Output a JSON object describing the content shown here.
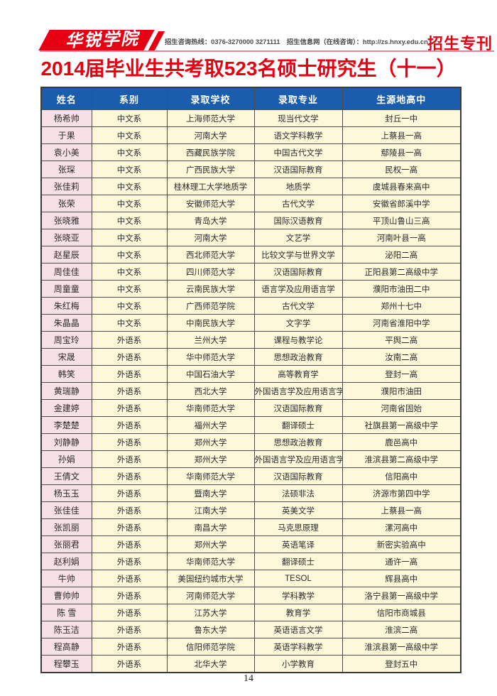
{
  "header": {
    "logo_text": "华锐学院",
    "contact_info": "招生咨询热线：0376-3270000 3271111　招生信息网（在线咨询）：http://zs.hnxy.edu.cn",
    "badge": "招生专刊"
  },
  "title": "2014届毕业生共考取523名硕士研究生（十一）",
  "colors": {
    "accent_red": "#e60012",
    "header_blue": "#1a5dad",
    "name_cell_pink": "#f8e1e6",
    "cell_cream": "#fdf8da",
    "rule_pink": "#e28391"
  },
  "table": {
    "columns": [
      "姓名",
      "系别",
      "录取学校",
      "录取专业",
      "生源地高中"
    ],
    "rows": [
      [
        "杨希帅",
        "中文系",
        "上海师范大学",
        "现当代文学",
        "封丘一中"
      ],
      [
        "于果",
        "中文系",
        "河南大学",
        "语文学科教学",
        "上蔡县一高"
      ],
      [
        "袁小美",
        "中文系",
        "西藏民族学院",
        "中国古代文学",
        "鄢陵县一高"
      ],
      [
        "张琛",
        "中文系",
        "广西民族大学",
        "汉语国际教育",
        "民权一高"
      ],
      [
        "张佳莉",
        "中文系",
        "桂林理工大学地质学",
        "地质学",
        "虞城县春来高中"
      ],
      [
        "张荣",
        "中文系",
        "安徽师范大学",
        "古代文学",
        "安徽省郎溪中学"
      ],
      [
        "张晓雅",
        "中文系",
        "青岛大学",
        "国际汉语教育",
        "平顶山鲁山三高"
      ],
      [
        "张晓亚",
        "中文系",
        "河南大学",
        "文艺学",
        "河南叶县一高"
      ],
      [
        "赵星辰",
        "中文系",
        "西北师范大学",
        "比较文学与世界文学",
        "泌阳二高"
      ],
      [
        "周佳佳",
        "中文系",
        "四川师范大学",
        "汉语国际教育",
        "正阳县第二高级中学"
      ],
      [
        "周童童",
        "中文系",
        "云南民族大学",
        "语言学及应用语言学",
        "濮阳市油田二中"
      ],
      [
        "朱红梅",
        "中文系",
        "广西师范学院",
        "古代文学",
        "郑州十七中"
      ],
      [
        "朱晶晶",
        "中文系",
        "中南民族大学",
        "文字学",
        "河南省淮阳中学"
      ],
      [
        "周宝玲",
        "外语系",
        "兰州大学",
        "课程与教学论",
        "平舆二高"
      ],
      [
        "宋晟",
        "外语系",
        "华中师范大学",
        "思想政治教育",
        "汝南二高"
      ],
      [
        "韩笑",
        "外语系",
        "中国石油大学",
        "高等教育学",
        "登封一高"
      ],
      [
        "黄瑞静",
        "外语系",
        "西北大学",
        "外国语言学及应用语言学",
        "濮阳市油田"
      ],
      [
        "金建婷",
        "外语系",
        "华南师范大学",
        "汉语国际教育",
        "河南省固始"
      ],
      [
        "李楚楚",
        "外语系",
        "福州大学",
        "翻译硕士",
        "社旗县第一高级中学"
      ],
      [
        "刘静静",
        "外语系",
        "郑州大学",
        "思想政治教育",
        "鹿邑高中"
      ],
      [
        "孙娟",
        "外语系",
        "郑州大学",
        "外国语言学及应用语言学",
        "淮滨县第二高级中学"
      ],
      [
        "王倩文",
        "外语系",
        "华南师范大学",
        "汉语国际教育",
        "信阳高中"
      ],
      [
        "杨玉玉",
        "外语系",
        "暨南大学",
        "法硕非法",
        "济源市第四中学"
      ],
      [
        "张佳佳",
        "外语系",
        "江南大学",
        "英美文学",
        "上蔡县一高"
      ],
      [
        "张凯丽",
        "外语系",
        "南昌大学",
        "马克思原理",
        "漯河高中"
      ],
      [
        "张丽君",
        "外语系",
        "郑州大学",
        "英语笔译",
        "新密实验高中"
      ],
      [
        "赵利娟",
        "外语系",
        "华南师范大学",
        "翻译硕士",
        "通许一高"
      ],
      [
        "牛帅",
        "外语系",
        "美国纽约城市大学",
        "TESOL",
        "辉县高中"
      ],
      [
        "曹帅帅",
        "外语系",
        "河南师范大学",
        "学科教学",
        "洛宁县第一高级中学"
      ],
      [
        "陈 雪",
        "外语系",
        "江苏大学",
        "教育学",
        "信阳市商城县"
      ],
      [
        "陈玉洁",
        "外语系",
        "鲁东大学",
        "英语语言文学",
        "淮滨二高"
      ],
      [
        "程高静",
        "外语系",
        "信阳师范学院",
        "英语学科教学",
        "淮滨县第一高级中学"
      ],
      [
        "程攀玉",
        "外语系",
        "北华大学",
        "小学教育",
        "登封五中"
      ]
    ]
  },
  "page_number": "14"
}
